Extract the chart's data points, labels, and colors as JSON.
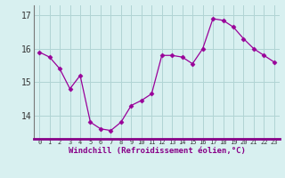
{
  "hours": [
    0,
    1,
    2,
    3,
    4,
    5,
    6,
    7,
    8,
    9,
    10,
    11,
    12,
    13,
    14,
    15,
    16,
    17,
    18,
    19,
    20,
    21,
    22,
    23
  ],
  "windchill": [
    15.9,
    15.75,
    15.4,
    14.8,
    15.2,
    13.8,
    13.6,
    13.55,
    13.8,
    14.3,
    14.45,
    14.65,
    15.8,
    15.8,
    15.75,
    15.55,
    16.0,
    16.9,
    16.85,
    16.65,
    16.3,
    16.0,
    15.8,
    15.6
  ],
  "line_color": "#990099",
  "marker": "D",
  "marker_size": 2.5,
  "bg_color": "#d8f0f0",
  "grid_color": "#b0d4d4",
  "ylim": [
    13.3,
    17.3
  ],
  "yticks": [
    14,
    15,
    16,
    17
  ],
  "ytick_labels": [
    "14",
    "15",
    "16",
    "17"
  ],
  "xlabel": "Windchill (Refroidissement éolien,°C)",
  "xlabel_color": "#880088",
  "axis_bar_color": "#880088",
  "xlim": [
    -0.5,
    23.5
  ],
  "xtick_labels": [
    "0",
    "1",
    "2",
    "3",
    "4",
    "5",
    "6",
    "7",
    "8",
    "9",
    "10",
    "11",
    "12",
    "13",
    "14",
    "15",
    "16",
    "17",
    "18",
    "19",
    "20",
    "21",
    "22",
    "23"
  ]
}
